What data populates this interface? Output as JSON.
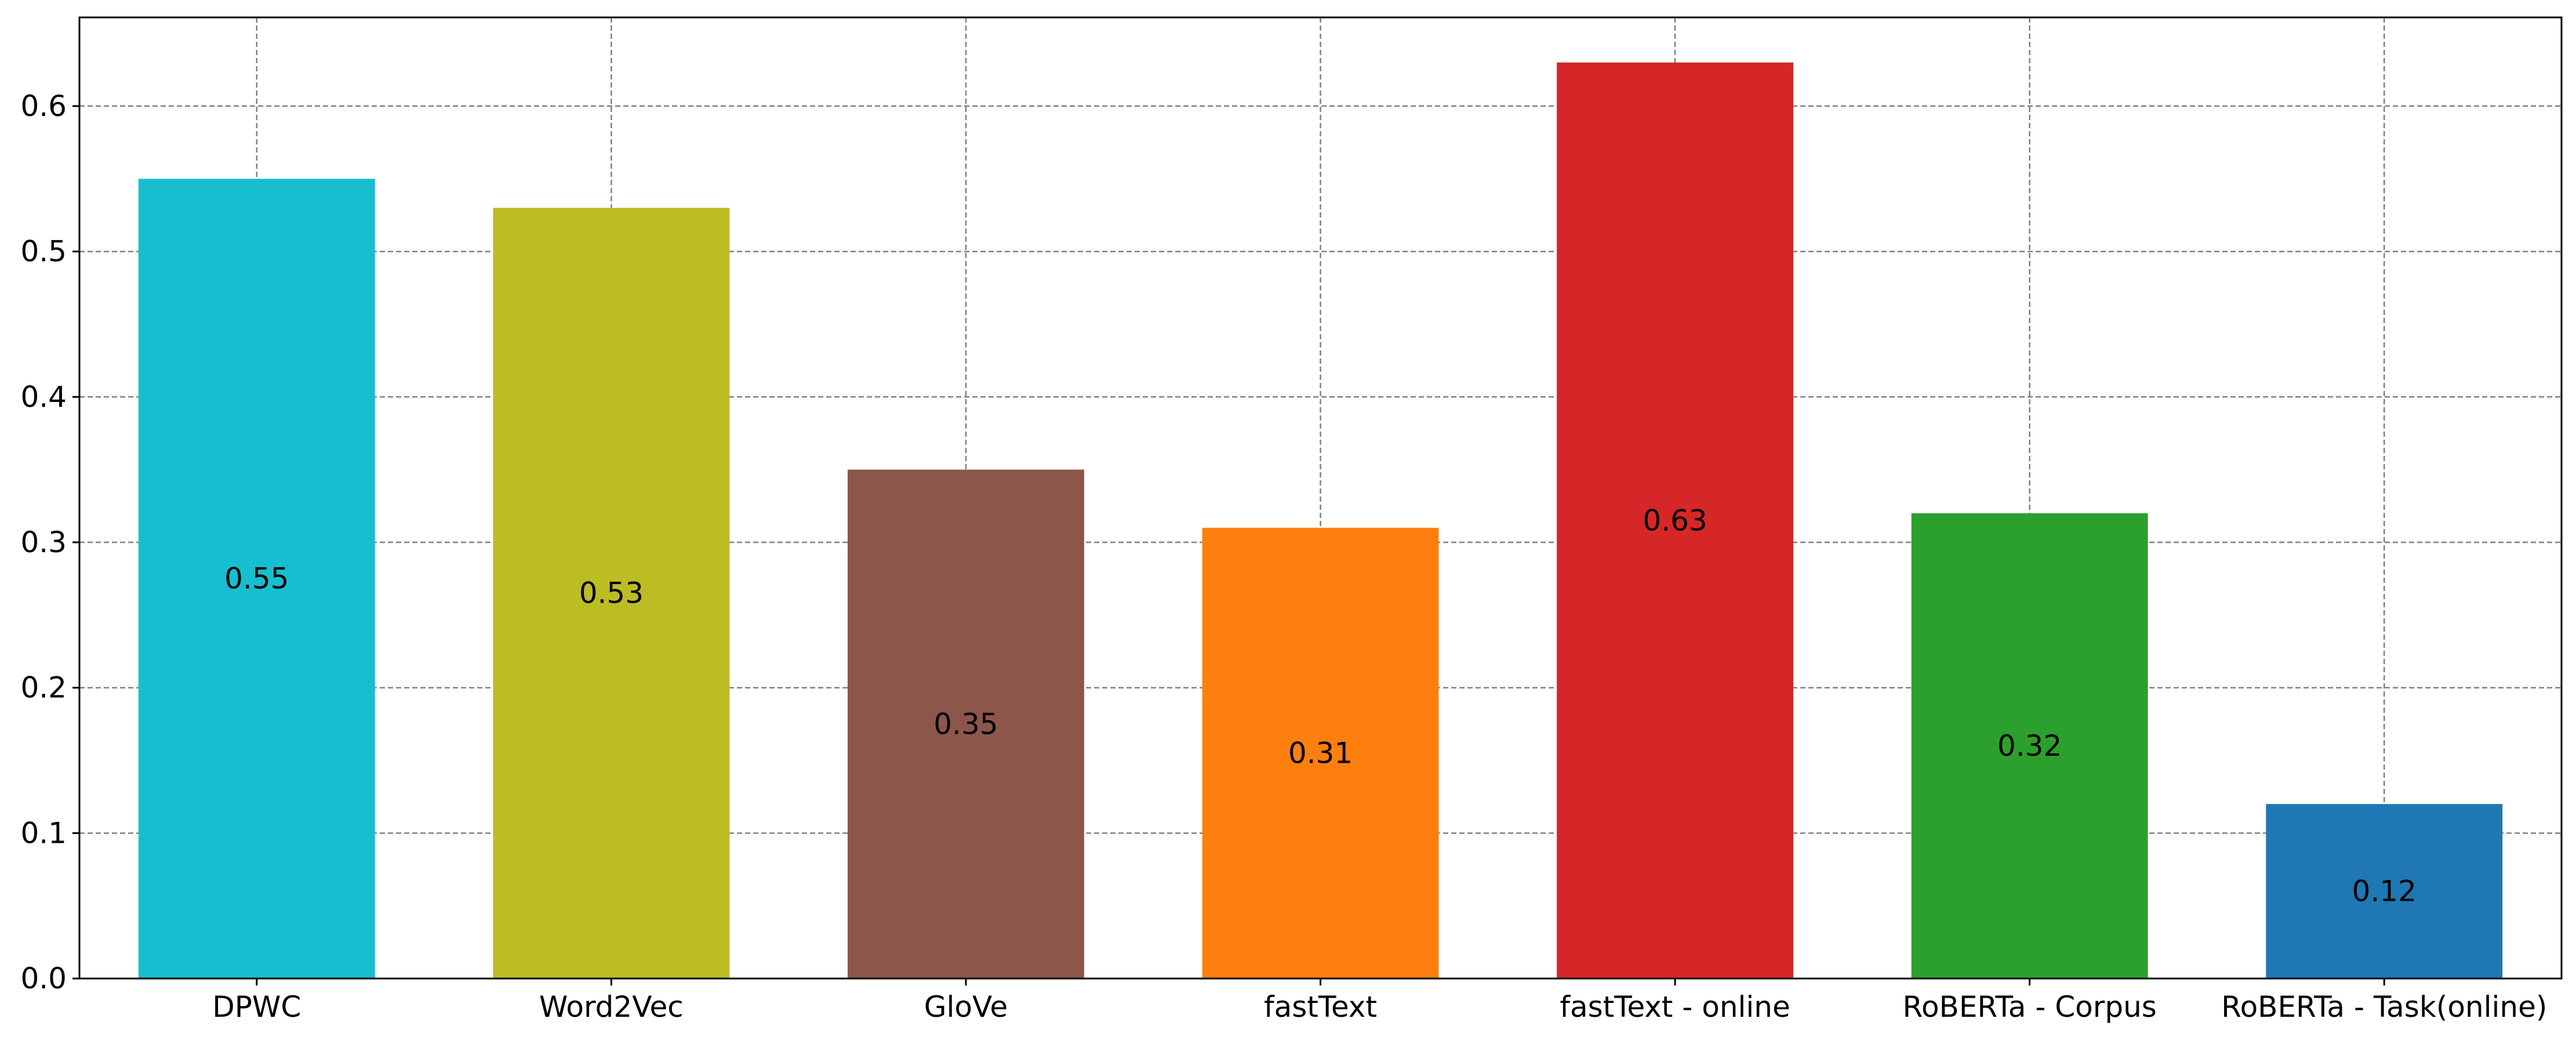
{
  "chart_data": {
    "type": "bar",
    "title": "",
    "xlabel": "",
    "ylabel": "",
    "categories": [
      "DPWC",
      "Word2Vec",
      "GloVe",
      "fastText",
      "fastText - online",
      "RoBERTa - Corpus",
      "RoBERTa - Task(online)"
    ],
    "values": [
      0.55,
      0.53,
      0.35,
      0.31,
      0.63,
      0.32,
      0.12
    ],
    "value_labels": [
      "0.55",
      "0.53",
      "0.35",
      "0.31",
      "0.63",
      "0.32",
      "0.12"
    ],
    "colors": [
      "#17becf",
      "#bcbd22",
      "#8c564b",
      "#ff7f0e",
      "#d62728",
      "#2ca02c",
      "#1f77b4"
    ],
    "yticks": [
      0.0,
      0.1,
      0.2,
      0.3,
      0.4,
      0.5,
      0.6
    ],
    "ytick_labels": [
      "0.0",
      "0.1",
      "0.2",
      "0.3",
      "0.4",
      "0.5",
      "0.6"
    ],
    "ylim": [
      0,
      0.661
    ],
    "grid": true,
    "legend": false
  }
}
